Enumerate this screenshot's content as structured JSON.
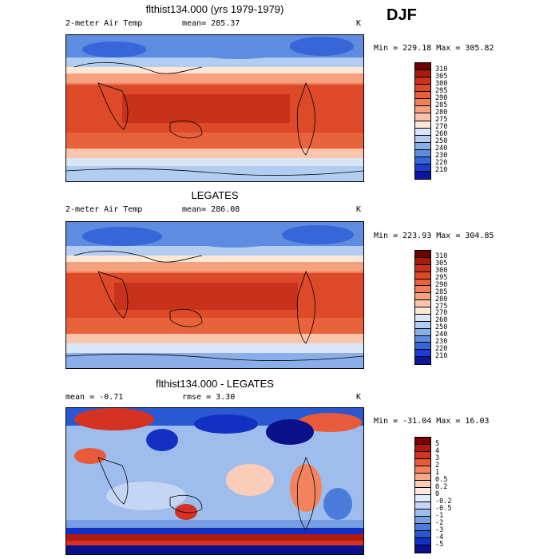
{
  "season": "DJF",
  "panels": [
    {
      "title": "flthist134.000 (yrs 1979-1979)",
      "left_label": "2-meter Air Temp",
      "mean_label": "mean= 285.37",
      "rmse_label": "",
      "units": "K",
      "minmax": "Min = 229.18 Max = 305.82",
      "colorbar_labels": [
        "310",
        "305",
        "300",
        "295",
        "290",
        "285",
        "280",
        "275",
        "270",
        "260",
        "250",
        "240",
        "230",
        "220",
        "210"
      ],
      "colorbar_colors": [
        "#6b0000",
        "#a51d0a",
        "#c8321a",
        "#dc4a2a",
        "#e8623c",
        "#f07e5a",
        "#f5a07e",
        "#f9c6ad",
        "#fde8d8",
        "#d9e6f7",
        "#b3cdf0",
        "#8aaeea",
        "#5e8ce0",
        "#3766d8",
        "#1a3fd0",
        "#0a16a0"
      ]
    },
    {
      "title": "LEGATES",
      "left_label": "2-meter Air Temp",
      "mean_label": "mean= 286.08",
      "rmse_label": "",
      "units": "K",
      "minmax": "Min = 223.93 Max = 304.85",
      "colorbar_labels": [
        "310",
        "305",
        "300",
        "295",
        "290",
        "285",
        "280",
        "275",
        "270",
        "260",
        "250",
        "240",
        "230",
        "220",
        "210"
      ],
      "colorbar_colors": [
        "#6b0000",
        "#a51d0a",
        "#c8321a",
        "#dc4a2a",
        "#e8623c",
        "#f07e5a",
        "#f5a07e",
        "#f9c6ad",
        "#fde8d8",
        "#d9e6f7",
        "#b3cdf0",
        "#8aaeea",
        "#5e8ce0",
        "#3766d8",
        "#1a3fd0",
        "#0a16a0"
      ]
    },
    {
      "title": "flthist134.000 - LEGATES",
      "left_label": "mean =  -0.71",
      "mean_label": "rmse =   3.30",
      "rmse_label": "",
      "units": "K",
      "minmax": "Min = -31.04 Max =  16.03",
      "colorbar_labels": [
        "5",
        "4",
        "3",
        "2",
        "1",
        "0.5",
        "0.2",
        "0",
        "-0.2",
        "-0.5",
        "-1",
        "-2",
        "-3",
        "-4",
        "-5"
      ],
      "colorbar_colors": [
        "#7a0000",
        "#b2180c",
        "#d43222",
        "#e85a3a",
        "#f2835e",
        "#f7a98a",
        "#fbcdb8",
        "#fde9df",
        "#e3ecf9",
        "#c4d6f3",
        "#9fbdec",
        "#769fe4",
        "#4c7cdb",
        "#2a57d2",
        "#1230c4",
        "#0a0f8a"
      ]
    }
  ]
}
